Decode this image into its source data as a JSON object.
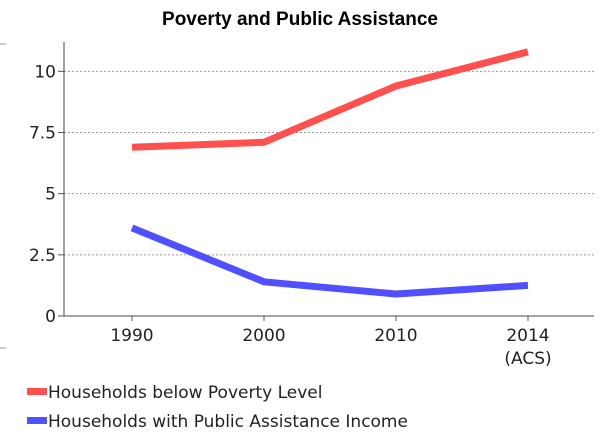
{
  "chart_data": {
    "type": "line",
    "title": "Poverty and Public Assistance",
    "xlabel": "",
    "ylabel": "",
    "categories": [
      "1990",
      "2000",
      "2010",
      "2014"
    ],
    "category_sublabels": [
      "",
      "",
      "",
      "(ACS)"
    ],
    "ylim": [
      0,
      11.2
    ],
    "yticks": [
      "0",
      "2.5",
      "5",
      "7.5",
      "10"
    ],
    "ytick_values": [
      0,
      2.5,
      5,
      7.5,
      10
    ],
    "grid": true,
    "legend_position": "bottom-left",
    "series": [
      {
        "name": "Households below Poverty Level",
        "color": "#ff5050",
        "values": [
          6.9,
          7.1,
          9.4,
          10.8
        ]
      },
      {
        "name": "Households with Public Assistance Income",
        "color": "#5050ff",
        "values": [
          3.6,
          1.4,
          0.9,
          1.25
        ]
      }
    ]
  }
}
